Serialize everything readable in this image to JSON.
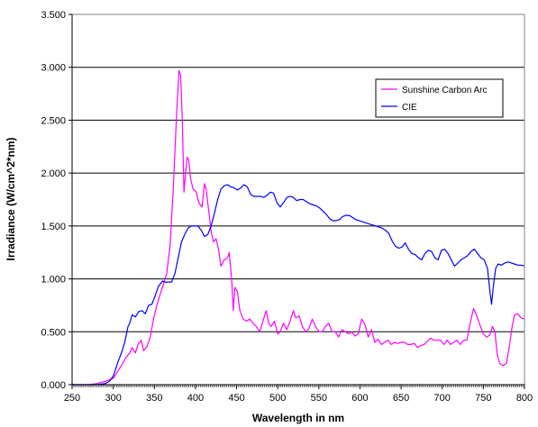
{
  "chart_data": {
    "type": "line",
    "title": "",
    "xlabel": "Wavelength in nm",
    "ylabel": "Irradiance (W/cm^2*nm)",
    "xlim": [
      250,
      800
    ],
    "ylim": [
      0,
      3.5
    ],
    "x_ticks": [
      "250",
      "300",
      "350",
      "400",
      "450",
      "500",
      "550",
      "600",
      "650",
      "700",
      "750",
      "800"
    ],
    "y_ticks": [
      "0.000",
      "0.500",
      "1.000",
      "1.500",
      "2.000",
      "2.500",
      "3.000",
      "3.500"
    ],
    "grid": "horizontal",
    "legend": {
      "placement": "top-right",
      "entries": [
        "Sunshine Carbon Arc",
        "CIE"
      ]
    },
    "series": [
      {
        "name": "Sunshine Carbon Arc",
        "color": "#ff00ff",
        "points": [
          [
            250,
            0
          ],
          [
            270,
            0
          ],
          [
            280,
            0.01
          ],
          [
            290,
            0.03
          ],
          [
            300,
            0.06
          ],
          [
            305,
            0.12
          ],
          [
            310,
            0.18
          ],
          [
            315,
            0.25
          ],
          [
            320,
            0.3
          ],
          [
            323,
            0.35
          ],
          [
            327,
            0.3
          ],
          [
            330,
            0.38
          ],
          [
            334,
            0.42
          ],
          [
            337,
            0.32
          ],
          [
            341,
            0.36
          ],
          [
            345,
            0.45
          ],
          [
            349,
            0.62
          ],
          [
            353,
            0.75
          ],
          [
            357,
            0.85
          ],
          [
            361,
            0.95
          ],
          [
            365,
            1.05
          ],
          [
            369,
            1.3
          ],
          [
            373,
            1.85
          ],
          [
            377,
            2.55
          ],
          [
            380,
            2.97
          ],
          [
            382,
            2.92
          ],
          [
            384,
            2.5
          ],
          [
            386,
            1.82
          ],
          [
            388,
            2.0
          ],
          [
            390,
            2.15
          ],
          [
            392,
            2.12
          ],
          [
            394,
            1.95
          ],
          [
            397,
            1.85
          ],
          [
            401,
            1.82
          ],
          [
            404,
            1.72
          ],
          [
            408,
            1.68
          ],
          [
            411,
            1.9
          ],
          [
            413,
            1.85
          ],
          [
            416,
            1.65
          ],
          [
            419,
            1.45
          ],
          [
            422,
            1.35
          ],
          [
            425,
            1.38
          ],
          [
            428,
            1.28
          ],
          [
            431,
            1.12
          ],
          [
            435,
            1.18
          ],
          [
            439,
            1.2
          ],
          [
            441,
            1.25
          ],
          [
            444,
            1.0
          ],
          [
            446,
            0.7
          ],
          [
            448,
            0.92
          ],
          [
            451,
            0.88
          ],
          [
            454,
            0.7
          ],
          [
            458,
            0.62
          ],
          [
            462,
            0.6
          ],
          [
            466,
            0.62
          ],
          [
            470,
            0.58
          ],
          [
            474,
            0.55
          ],
          [
            478,
            0.5
          ],
          [
            482,
            0.6
          ],
          [
            486,
            0.7
          ],
          [
            489,
            0.58
          ],
          [
            492,
            0.55
          ],
          [
            496,
            0.6
          ],
          [
            500,
            0.48
          ],
          [
            503,
            0.5
          ],
          [
            507,
            0.58
          ],
          [
            511,
            0.52
          ],
          [
            515,
            0.6
          ],
          [
            519,
            0.7
          ],
          [
            522,
            0.63
          ],
          [
            526,
            0.65
          ],
          [
            530,
            0.55
          ],
          [
            534,
            0.5
          ],
          [
            538,
            0.53
          ],
          [
            542,
            0.62
          ],
          [
            546,
            0.55
          ],
          [
            550,
            0.5
          ],
          [
            554,
            0.5
          ],
          [
            558,
            0.55
          ],
          [
            562,
            0.58
          ],
          [
            566,
            0.5
          ],
          [
            570,
            0.5
          ],
          [
            574,
            0.45
          ],
          [
            578,
            0.52
          ],
          [
            582,
            0.5
          ],
          [
            586,
            0.48
          ],
          [
            590,
            0.5
          ],
          [
            594,
            0.46
          ],
          [
            598,
            0.48
          ],
          [
            602,
            0.62
          ],
          [
            606,
            0.57
          ],
          [
            610,
            0.45
          ],
          [
            614,
            0.52
          ],
          [
            618,
            0.4
          ],
          [
            622,
            0.43
          ],
          [
            626,
            0.38
          ],
          [
            630,
            0.4
          ],
          [
            634,
            0.42
          ],
          [
            638,
            0.38
          ],
          [
            642,
            0.4
          ],
          [
            646,
            0.39
          ],
          [
            650,
            0.4
          ],
          [
            654,
            0.4
          ],
          [
            658,
            0.38
          ],
          [
            662,
            0.38
          ],
          [
            666,
            0.39
          ],
          [
            670,
            0.35
          ],
          [
            674,
            0.37
          ],
          [
            678,
            0.38
          ],
          [
            682,
            0.41
          ],
          [
            686,
            0.44
          ],
          [
            690,
            0.42
          ],
          [
            694,
            0.42
          ],
          [
            698,
            0.42
          ],
          [
            702,
            0.38
          ],
          [
            706,
            0.42
          ],
          [
            710,
            0.38
          ],
          [
            714,
            0.4
          ],
          [
            718,
            0.42
          ],
          [
            722,
            0.38
          ],
          [
            726,
            0.42
          ],
          [
            730,
            0.42
          ],
          [
            734,
            0.58
          ],
          [
            738,
            0.72
          ],
          [
            742,
            0.65
          ],
          [
            746,
            0.56
          ],
          [
            750,
            0.48
          ],
          [
            754,
            0.45
          ],
          [
            758,
            0.47
          ],
          [
            761,
            0.55
          ],
          [
            764,
            0.5
          ],
          [
            767,
            0.28
          ],
          [
            770,
            0.2
          ],
          [
            774,
            0.18
          ],
          [
            778,
            0.2
          ],
          [
            782,
            0.38
          ],
          [
            785,
            0.55
          ],
          [
            788,
            0.66
          ],
          [
            792,
            0.67
          ],
          [
            796,
            0.63
          ],
          [
            800,
            0.62
          ]
        ]
      },
      {
        "name": "CIE",
        "color": "#0000ff",
        "points": [
          [
            250,
            0
          ],
          [
            280,
            0
          ],
          [
            290,
            0.01
          ],
          [
            295,
            0.03
          ],
          [
            300,
            0.08
          ],
          [
            303,
            0.15
          ],
          [
            306,
            0.22
          ],
          [
            310,
            0.3
          ],
          [
            314,
            0.4
          ],
          [
            318,
            0.55
          ],
          [
            320,
            0.58
          ],
          [
            323,
            0.66
          ],
          [
            327,
            0.64
          ],
          [
            331,
            0.69
          ],
          [
            335,
            0.7
          ],
          [
            339,
            0.67
          ],
          [
            343,
            0.75
          ],
          [
            347,
            0.76
          ],
          [
            351,
            0.84
          ],
          [
            355,
            0.93
          ],
          [
            360,
            0.98
          ],
          [
            363,
            0.97
          ],
          [
            367,
            0.97
          ],
          [
            371,
            0.97
          ],
          [
            375,
            1.05
          ],
          [
            379,
            1.2
          ],
          [
            383,
            1.35
          ],
          [
            387,
            1.42
          ],
          [
            391,
            1.48
          ],
          [
            395,
            1.5
          ],
          [
            399,
            1.5
          ],
          [
            403,
            1.5
          ],
          [
            407,
            1.46
          ],
          [
            411,
            1.4
          ],
          [
            415,
            1.42
          ],
          [
            419,
            1.5
          ],
          [
            423,
            1.62
          ],
          [
            427,
            1.75
          ],
          [
            431,
            1.85
          ],
          [
            435,
            1.88
          ],
          [
            439,
            1.89
          ],
          [
            443,
            1.87
          ],
          [
            447,
            1.86
          ],
          [
            451,
            1.84
          ],
          [
            455,
            1.86
          ],
          [
            459,
            1.89
          ],
          [
            463,
            1.87
          ],
          [
            467,
            1.8
          ],
          [
            471,
            1.78
          ],
          [
            475,
            1.78
          ],
          [
            479,
            1.78
          ],
          [
            483,
            1.77
          ],
          [
            487,
            1.79
          ],
          [
            491,
            1.82
          ],
          [
            495,
            1.81
          ],
          [
            499,
            1.72
          ],
          [
            503,
            1.68
          ],
          [
            507,
            1.72
          ],
          [
            511,
            1.77
          ],
          [
            515,
            1.78
          ],
          [
            519,
            1.77
          ],
          [
            523,
            1.74
          ],
          [
            527,
            1.75
          ],
          [
            531,
            1.75
          ],
          [
            535,
            1.73
          ],
          [
            539,
            1.71
          ],
          [
            543,
            1.7
          ],
          [
            547,
            1.69
          ],
          [
            551,
            1.67
          ],
          [
            555,
            1.64
          ],
          [
            559,
            1.61
          ],
          [
            563,
            1.57
          ],
          [
            567,
            1.55
          ],
          [
            571,
            1.55
          ],
          [
            575,
            1.56
          ],
          [
            579,
            1.59
          ],
          [
            583,
            1.6
          ],
          [
            587,
            1.6
          ],
          [
            591,
            1.58
          ],
          [
            595,
            1.56
          ],
          [
            599,
            1.55
          ],
          [
            603,
            1.54
          ],
          [
            607,
            1.53
          ],
          [
            611,
            1.52
          ],
          [
            615,
            1.51
          ],
          [
            619,
            1.5
          ],
          [
            623,
            1.49
          ],
          [
            627,
            1.48
          ],
          [
            631,
            1.46
          ],
          [
            635,
            1.43
          ],
          [
            639,
            1.36
          ],
          [
            643,
            1.31
          ],
          [
            647,
            1.29
          ],
          [
            651,
            1.3
          ],
          [
            655,
            1.34
          ],
          [
            659,
            1.28
          ],
          [
            663,
            1.24
          ],
          [
            667,
            1.23
          ],
          [
            671,
            1.2
          ],
          [
            675,
            1.18
          ],
          [
            679,
            1.24
          ],
          [
            683,
            1.27
          ],
          [
            687,
            1.26
          ],
          [
            691,
            1.2
          ],
          [
            695,
            1.18
          ],
          [
            699,
            1.27
          ],
          [
            703,
            1.28
          ],
          [
            707,
            1.24
          ],
          [
            711,
            1.18
          ],
          [
            715,
            1.12
          ],
          [
            719,
            1.15
          ],
          [
            723,
            1.18
          ],
          [
            727,
            1.2
          ],
          [
            731,
            1.22
          ],
          [
            735,
            1.26
          ],
          [
            739,
            1.28
          ],
          [
            743,
            1.24
          ],
          [
            747,
            1.2
          ],
          [
            751,
            1.18
          ],
          [
            755,
            1.1
          ],
          [
            758,
            0.88
          ],
          [
            760,
            0.76
          ],
          [
            762,
            0.92
          ],
          [
            765,
            1.1
          ],
          [
            768,
            1.14
          ],
          [
            772,
            1.13
          ],
          [
            776,
            1.15
          ],
          [
            780,
            1.16
          ],
          [
            784,
            1.15
          ],
          [
            788,
            1.14
          ],
          [
            792,
            1.13
          ],
          [
            796,
            1.13
          ],
          [
            800,
            1.12
          ]
        ]
      }
    ]
  }
}
